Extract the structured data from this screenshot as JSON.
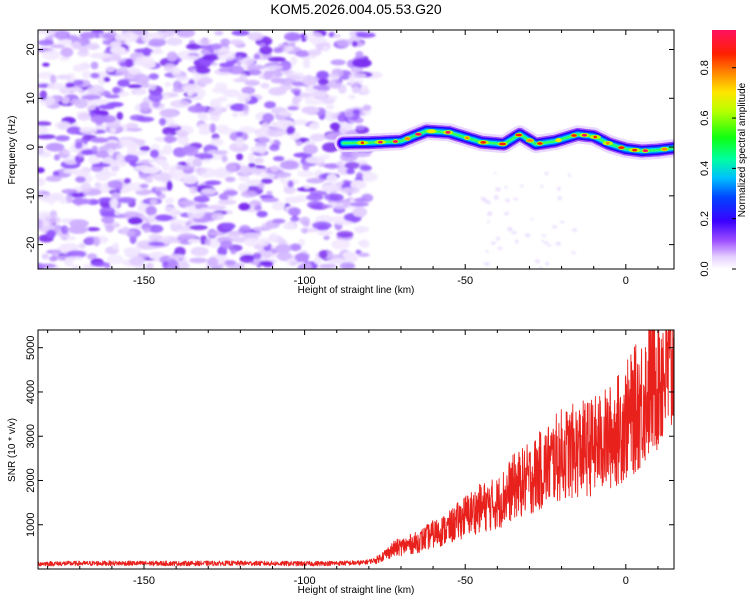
{
  "title": "KOM5.2026.004.05.53.G20",
  "colors": {
    "snr_line": "#e8211d",
    "spectro_noise": "#7a2cf0",
    "frame": "#000000"
  },
  "chart_data": [
    {
      "type": "heatmap",
      "name": "spectrogram",
      "xlabel": "Height of straight line (km)",
      "ylabel": "Frequency (Hz)",
      "xlim": [
        -183,
        15
      ],
      "ylim": [
        -25,
        24
      ],
      "xticks": [
        -150,
        -100,
        -50,
        0
      ],
      "xtick_labels": [
        "-150",
        "-100",
        "-50",
        "0"
      ],
      "yticks": [
        -20,
        -10,
        0,
        10,
        20
      ],
      "ytick_labels": [
        "-20",
        "-10",
        "0",
        "10",
        "20"
      ],
      "noise_region_x": [
        -183,
        -80
      ],
      "signal_start_x": -88,
      "ridge": {
        "x": [
          -88,
          -80,
          -70,
          -62,
          -55,
          -50,
          -45,
          -38,
          -33,
          -28,
          -22,
          -15,
          -10,
          -5,
          0,
          5,
          10,
          15
        ],
        "y": [
          0.8,
          0.9,
          1.2,
          3.3,
          3.0,
          2.0,
          1.0,
          0.6,
          2.6,
          0.6,
          1.2,
          2.6,
          2.2,
          0.6,
          -0.4,
          -0.8,
          -0.6,
          -0.2
        ]
      },
      "colorbar": {
        "label": "Normalized spectral amplitude",
        "range": [
          0.0,
          0.95
        ],
        "ticks": [
          0.0,
          0.2,
          0.4,
          0.6,
          0.8
        ],
        "tick_labels": [
          "0.0",
          "0.2",
          "0.4",
          "0.6",
          "0.8"
        ]
      }
    },
    {
      "type": "line",
      "name": "snr",
      "xlabel": "Height of straight line (km)",
      "ylabel": "SNR (10 * v/v)",
      "xlim": [
        -183,
        15
      ],
      "ylim": [
        0,
        5400
      ],
      "xticks": [
        -150,
        -100,
        -50,
        0
      ],
      "xtick_labels": [
        "-150",
        "-100",
        "-50",
        "0"
      ],
      "yticks": [
        1000,
        2000,
        3000,
        4000,
        5000
      ],
      "ytick_labels": [
        "1000",
        "2000",
        "3000",
        "4000",
        "5000"
      ],
      "series": [
        {
          "name": "SNR",
          "x": [
            -183,
            -160,
            -140,
            -120,
            -100,
            -90,
            -82,
            -78,
            -72,
            -65,
            -60,
            -55,
            -50,
            -45,
            -40,
            -35,
            -30,
            -25,
            -20,
            -15,
            -10,
            -5,
            0,
            5,
            10,
            15
          ],
          "y": [
            120,
            130,
            125,
            130,
            120,
            130,
            140,
            200,
            500,
            650,
            850,
            1000,
            1300,
            1500,
            1600,
            2000,
            2200,
            2500,
            2800,
            2900,
            3000,
            3200,
            3600,
            4100,
            4800,
            4900
          ]
        }
      ]
    }
  ]
}
